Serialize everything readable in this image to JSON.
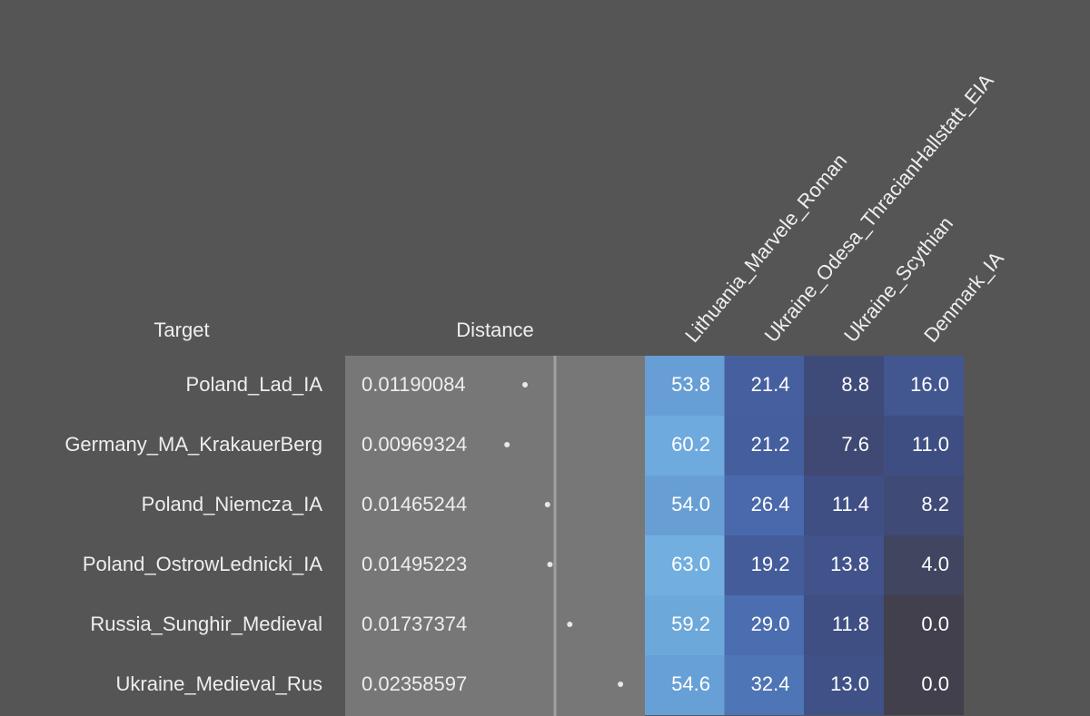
{
  "table": {
    "headers": {
      "target": "Target",
      "distance": "Distance",
      "populations": [
        "Lithuania_Marvele_Roman",
        "Ukraine_Odesa_ThracianHallstatt_EIA",
        "Ukraine_Scythian",
        "Denmark_IA"
      ]
    },
    "rows": [
      {
        "target": "Poland_Lad_IA",
        "distance": 0.01190084,
        "values": [
          53.8,
          21.4,
          8.8,
          16.0
        ],
        "value_labels": [
          "53.8",
          "21.4",
          "8.8",
          "16.0"
        ]
      },
      {
        "target": "Germany_MA_KrakauerBerg",
        "distance": 0.00969324,
        "values": [
          60.2,
          21.2,
          7.6,
          11.0
        ],
        "value_labels": [
          "60.2",
          "21.2",
          "7.6",
          "11.0"
        ]
      },
      {
        "target": "Poland_Niemcza_IA",
        "distance": 0.01465244,
        "values": [
          54.0,
          26.4,
          11.4,
          8.2
        ],
        "value_labels": [
          "54.0",
          "26.4",
          "11.4",
          "8.2"
        ]
      },
      {
        "target": "Poland_OstrowLednicki_IA",
        "distance": 0.01495223,
        "values": [
          63.0,
          19.2,
          13.8,
          4.0
        ],
        "value_labels": [
          "63.0",
          "19.2",
          "13.8",
          "4.0"
        ]
      },
      {
        "target": "Russia_Sunghir_Medieval",
        "distance": 0.01737374,
        "values": [
          59.2,
          29.0,
          11.8,
          0.0
        ],
        "value_labels": [
          "59.2",
          "29.0",
          "11.8",
          "0.0"
        ]
      },
      {
        "target": "Ukraine_Medieval_Rus",
        "distance": 0.02358597,
        "values": [
          54.6,
          32.4,
          13.0,
          0.0
        ],
        "value_labels": [
          "54.6",
          "32.4",
          "13.0",
          "0.0"
        ]
      }
    ]
  }
}
